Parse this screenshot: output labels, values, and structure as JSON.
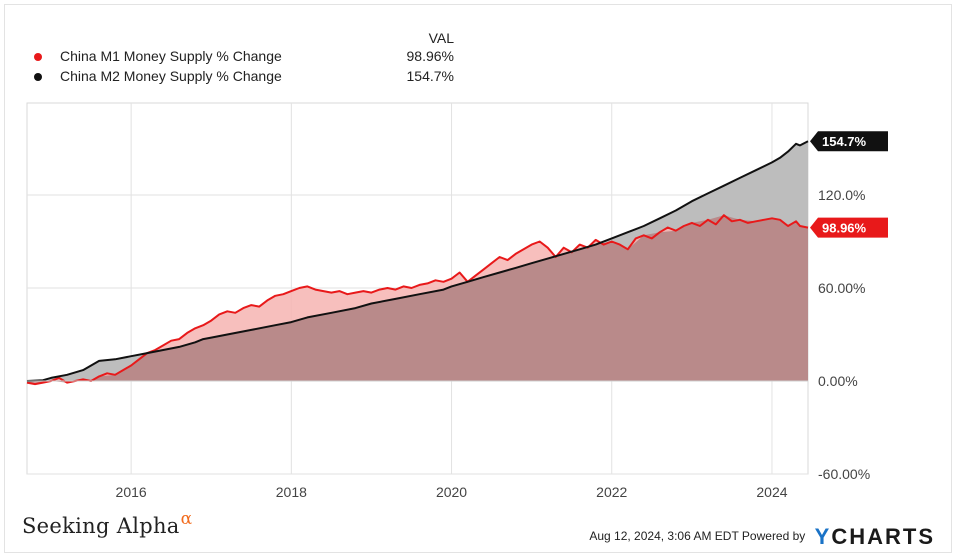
{
  "legend": {
    "header": "VAL",
    "items": [
      {
        "name": "China M1 Money Supply % Change",
        "value": "98.96%",
        "color": "#e8191a"
      },
      {
        "name": "China M2 Money Supply % Change",
        "value": "154.7%",
        "color": "#111111"
      }
    ]
  },
  "footer": {
    "brand": "Seeking Alpha",
    "brand_mark": "α",
    "timestamp": "Aug 12, 2024, 3:06 AM EDT",
    "powered_by": "Powered by",
    "ycharts_y": "Y",
    "ycharts_rest": "CHARTS"
  },
  "chart_data": {
    "type": "area",
    "xlim": [
      2014.7,
      2024.45
    ],
    "ylim": [
      -60,
      135
    ],
    "y_ticks": [
      {
        "value": -60,
        "label": "-60.00%"
      },
      {
        "value": 0,
        "label": "0.00%"
      },
      {
        "value": 60,
        "label": "60.00%"
      },
      {
        "value": 120,
        "label": "120.0%"
      }
    ],
    "x_ticks": [
      {
        "value": 2016,
        "label": "2016"
      },
      {
        "value": 2018,
        "label": "2018"
      },
      {
        "value": 2020,
        "label": "2020"
      },
      {
        "value": 2022,
        "label": "2022"
      },
      {
        "value": 2024,
        "label": "2024"
      }
    ],
    "grid": true,
    "series": [
      {
        "name": "China M2 Money Supply % Change",
        "color": "#111111",
        "fill": "#bdbdbd",
        "end_label": "154.7%",
        "points": [
          [
            2014.7,
            0
          ],
          [
            2014.9,
            0.5
          ],
          [
            2015.0,
            2
          ],
          [
            2015.2,
            4
          ],
          [
            2015.4,
            7
          ],
          [
            2015.5,
            10
          ],
          [
            2015.6,
            13
          ],
          [
            2015.8,
            14
          ],
          [
            2016.0,
            16
          ],
          [
            2016.2,
            18
          ],
          [
            2016.4,
            20
          ],
          [
            2016.6,
            22
          ],
          [
            2016.8,
            25
          ],
          [
            2016.9,
            27
          ],
          [
            2017.0,
            28
          ],
          [
            2017.2,
            30
          ],
          [
            2017.5,
            33
          ],
          [
            2017.8,
            36
          ],
          [
            2018.0,
            38
          ],
          [
            2018.2,
            41
          ],
          [
            2018.5,
            44
          ],
          [
            2018.8,
            47
          ],
          [
            2019.0,
            50
          ],
          [
            2019.3,
            53
          ],
          [
            2019.6,
            56
          ],
          [
            2019.9,
            59
          ],
          [
            2020.0,
            61
          ],
          [
            2020.2,
            64
          ],
          [
            2020.4,
            67
          ],
          [
            2020.6,
            70
          ],
          [
            2020.8,
            73
          ],
          [
            2021.0,
            76
          ],
          [
            2021.2,
            79
          ],
          [
            2021.4,
            82
          ],
          [
            2021.6,
            85
          ],
          [
            2021.8,
            88
          ],
          [
            2022.0,
            92
          ],
          [
            2022.2,
            96
          ],
          [
            2022.4,
            100
          ],
          [
            2022.6,
            105
          ],
          [
            2022.8,
            110
          ],
          [
            2023.0,
            116
          ],
          [
            2023.2,
            121
          ],
          [
            2023.4,
            126
          ],
          [
            2023.6,
            131
          ],
          [
            2023.8,
            136
          ],
          [
            2024.0,
            141
          ],
          [
            2024.1,
            144
          ],
          [
            2024.2,
            148
          ],
          [
            2024.3,
            153
          ],
          [
            2024.35,
            152
          ],
          [
            2024.45,
            154.7
          ]
        ]
      },
      {
        "name": "China M1 Money Supply % Change",
        "color": "#e8191a",
        "fill": "#f6b4b2",
        "end_label": "98.96%",
        "points": [
          [
            2014.7,
            -1
          ],
          [
            2014.8,
            -2
          ],
          [
            2014.9,
            -1
          ],
          [
            2015.0,
            0
          ],
          [
            2015.1,
            2
          ],
          [
            2015.2,
            -1
          ],
          [
            2015.3,
            0
          ],
          [
            2015.4,
            1
          ],
          [
            2015.5,
            0
          ],
          [
            2015.6,
            3
          ],
          [
            2015.7,
            5
          ],
          [
            2015.8,
            4
          ],
          [
            2015.9,
            7
          ],
          [
            2016.0,
            10
          ],
          [
            2016.1,
            14
          ],
          [
            2016.2,
            18
          ],
          [
            2016.3,
            20
          ],
          [
            2016.4,
            23
          ],
          [
            2016.5,
            26
          ],
          [
            2016.6,
            27
          ],
          [
            2016.7,
            31
          ],
          [
            2016.8,
            34
          ],
          [
            2016.9,
            36
          ],
          [
            2017.0,
            39
          ],
          [
            2017.1,
            43
          ],
          [
            2017.2,
            45
          ],
          [
            2017.3,
            44
          ],
          [
            2017.4,
            47
          ],
          [
            2017.5,
            49
          ],
          [
            2017.6,
            48
          ],
          [
            2017.7,
            52
          ],
          [
            2017.8,
            55
          ],
          [
            2017.9,
            56
          ],
          [
            2018.0,
            58
          ],
          [
            2018.1,
            60
          ],
          [
            2018.2,
            61
          ],
          [
            2018.3,
            59
          ],
          [
            2018.4,
            58
          ],
          [
            2018.5,
            57
          ],
          [
            2018.6,
            58
          ],
          [
            2018.7,
            56
          ],
          [
            2018.8,
            57
          ],
          [
            2018.9,
            58
          ],
          [
            2019.0,
            57
          ],
          [
            2019.1,
            59
          ],
          [
            2019.2,
            60
          ],
          [
            2019.3,
            59
          ],
          [
            2019.4,
            61
          ],
          [
            2019.5,
            60
          ],
          [
            2019.6,
            62
          ],
          [
            2019.7,
            63
          ],
          [
            2019.8,
            65
          ],
          [
            2019.9,
            64
          ],
          [
            2020.0,
            66
          ],
          [
            2020.1,
            70
          ],
          [
            2020.2,
            64
          ],
          [
            2020.3,
            68
          ],
          [
            2020.4,
            72
          ],
          [
            2020.5,
            76
          ],
          [
            2020.6,
            80
          ],
          [
            2020.7,
            78
          ],
          [
            2020.8,
            82
          ],
          [
            2020.9,
            85
          ],
          [
            2021.0,
            88
          ],
          [
            2021.1,
            90
          ],
          [
            2021.2,
            86
          ],
          [
            2021.3,
            80
          ],
          [
            2021.4,
            86
          ],
          [
            2021.5,
            83
          ],
          [
            2021.6,
            88
          ],
          [
            2021.7,
            86
          ],
          [
            2021.8,
            91
          ],
          [
            2021.9,
            88
          ],
          [
            2022.0,
            90
          ],
          [
            2022.1,
            88
          ],
          [
            2022.2,
            85
          ],
          [
            2022.3,
            92
          ],
          [
            2022.4,
            94
          ],
          [
            2022.5,
            92
          ],
          [
            2022.6,
            96
          ],
          [
            2022.7,
            99
          ],
          [
            2022.8,
            97
          ],
          [
            2022.9,
            100
          ],
          [
            2023.0,
            102
          ],
          [
            2023.1,
            100
          ],
          [
            2023.2,
            104
          ],
          [
            2023.3,
            101
          ],
          [
            2023.4,
            107
          ],
          [
            2023.5,
            103
          ],
          [
            2023.6,
            104
          ],
          [
            2023.7,
            102
          ],
          [
            2023.8,
            103
          ],
          [
            2023.9,
            104
          ],
          [
            2024.0,
            105
          ],
          [
            2024.1,
            104
          ],
          [
            2024.2,
            100
          ],
          [
            2024.3,
            103
          ],
          [
            2024.35,
            100
          ],
          [
            2024.45,
            98.96
          ]
        ]
      }
    ]
  }
}
